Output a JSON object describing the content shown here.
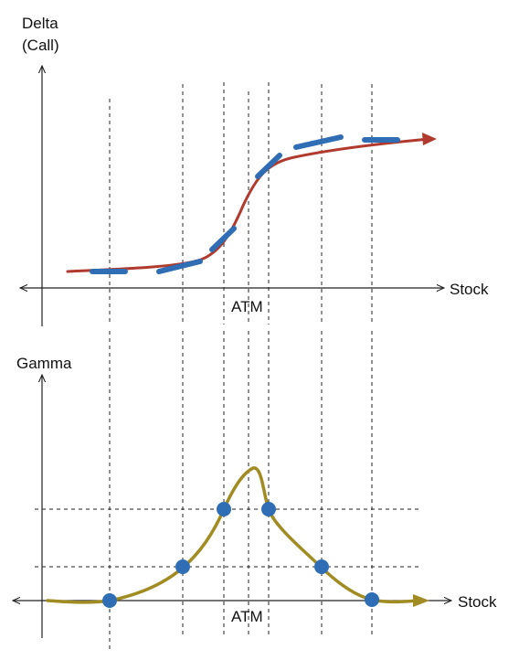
{
  "top_chart": {
    "y_axis_label_line1": "Delta",
    "y_axis_label_line2": "(Call)",
    "x_axis_label": "Stock",
    "atm_label": "ATM"
  },
  "bottom_chart": {
    "y_axis_label": "Gamma",
    "x_axis_label": "Stock",
    "atm_label": "ATM"
  },
  "colors": {
    "delta_curve": "#b03a2e",
    "tangent_segments": "#2f6db5",
    "gamma_curve": "#a08c22",
    "gamma_points": "#2f6db5",
    "axes": "#222222",
    "guides": "#222222"
  }
}
